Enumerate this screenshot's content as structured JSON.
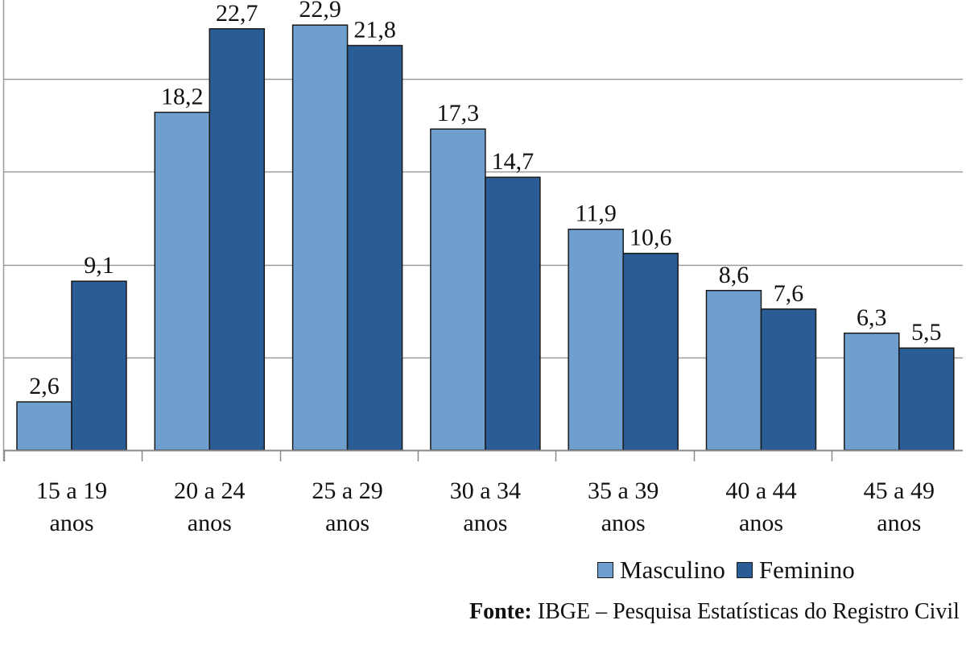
{
  "chart_data": {
    "type": "bar",
    "categories": [
      [
        "15 a 19",
        "anos"
      ],
      [
        "20 a 24",
        "anos"
      ],
      [
        "25 a 29",
        "anos"
      ],
      [
        "30 a 34",
        "anos"
      ],
      [
        "35 a 39",
        "anos"
      ],
      [
        "40 a 44",
        "anos"
      ],
      [
        "45 a 49",
        "anos"
      ]
    ],
    "series": [
      {
        "name": "Masculino",
        "color": "#6f9fcf",
        "values": [
          2.6,
          18.2,
          22.9,
          17.3,
          11.9,
          8.6,
          6.3
        ],
        "labels": [
          "2,6",
          "18,2",
          "22,9",
          "17,3",
          "11,9",
          "8,6",
          "6,3"
        ]
      },
      {
        "name": "Feminino",
        "color": "#2a5c96",
        "values": [
          9.1,
          22.7,
          21.8,
          14.7,
          10.6,
          7.6,
          5.5
        ],
        "labels": [
          "9,1",
          "22,7",
          "21,8",
          "14,7",
          "10,6",
          "7,6",
          "5,5"
        ]
      }
    ],
    "ylim": [
      0,
      25
    ],
    "grid": true,
    "legend_position": "bottom-right"
  },
  "source": {
    "prefix": "Fonte:",
    "text": "IBGE – Pesquisa Estatísticas do Registro Civil"
  }
}
